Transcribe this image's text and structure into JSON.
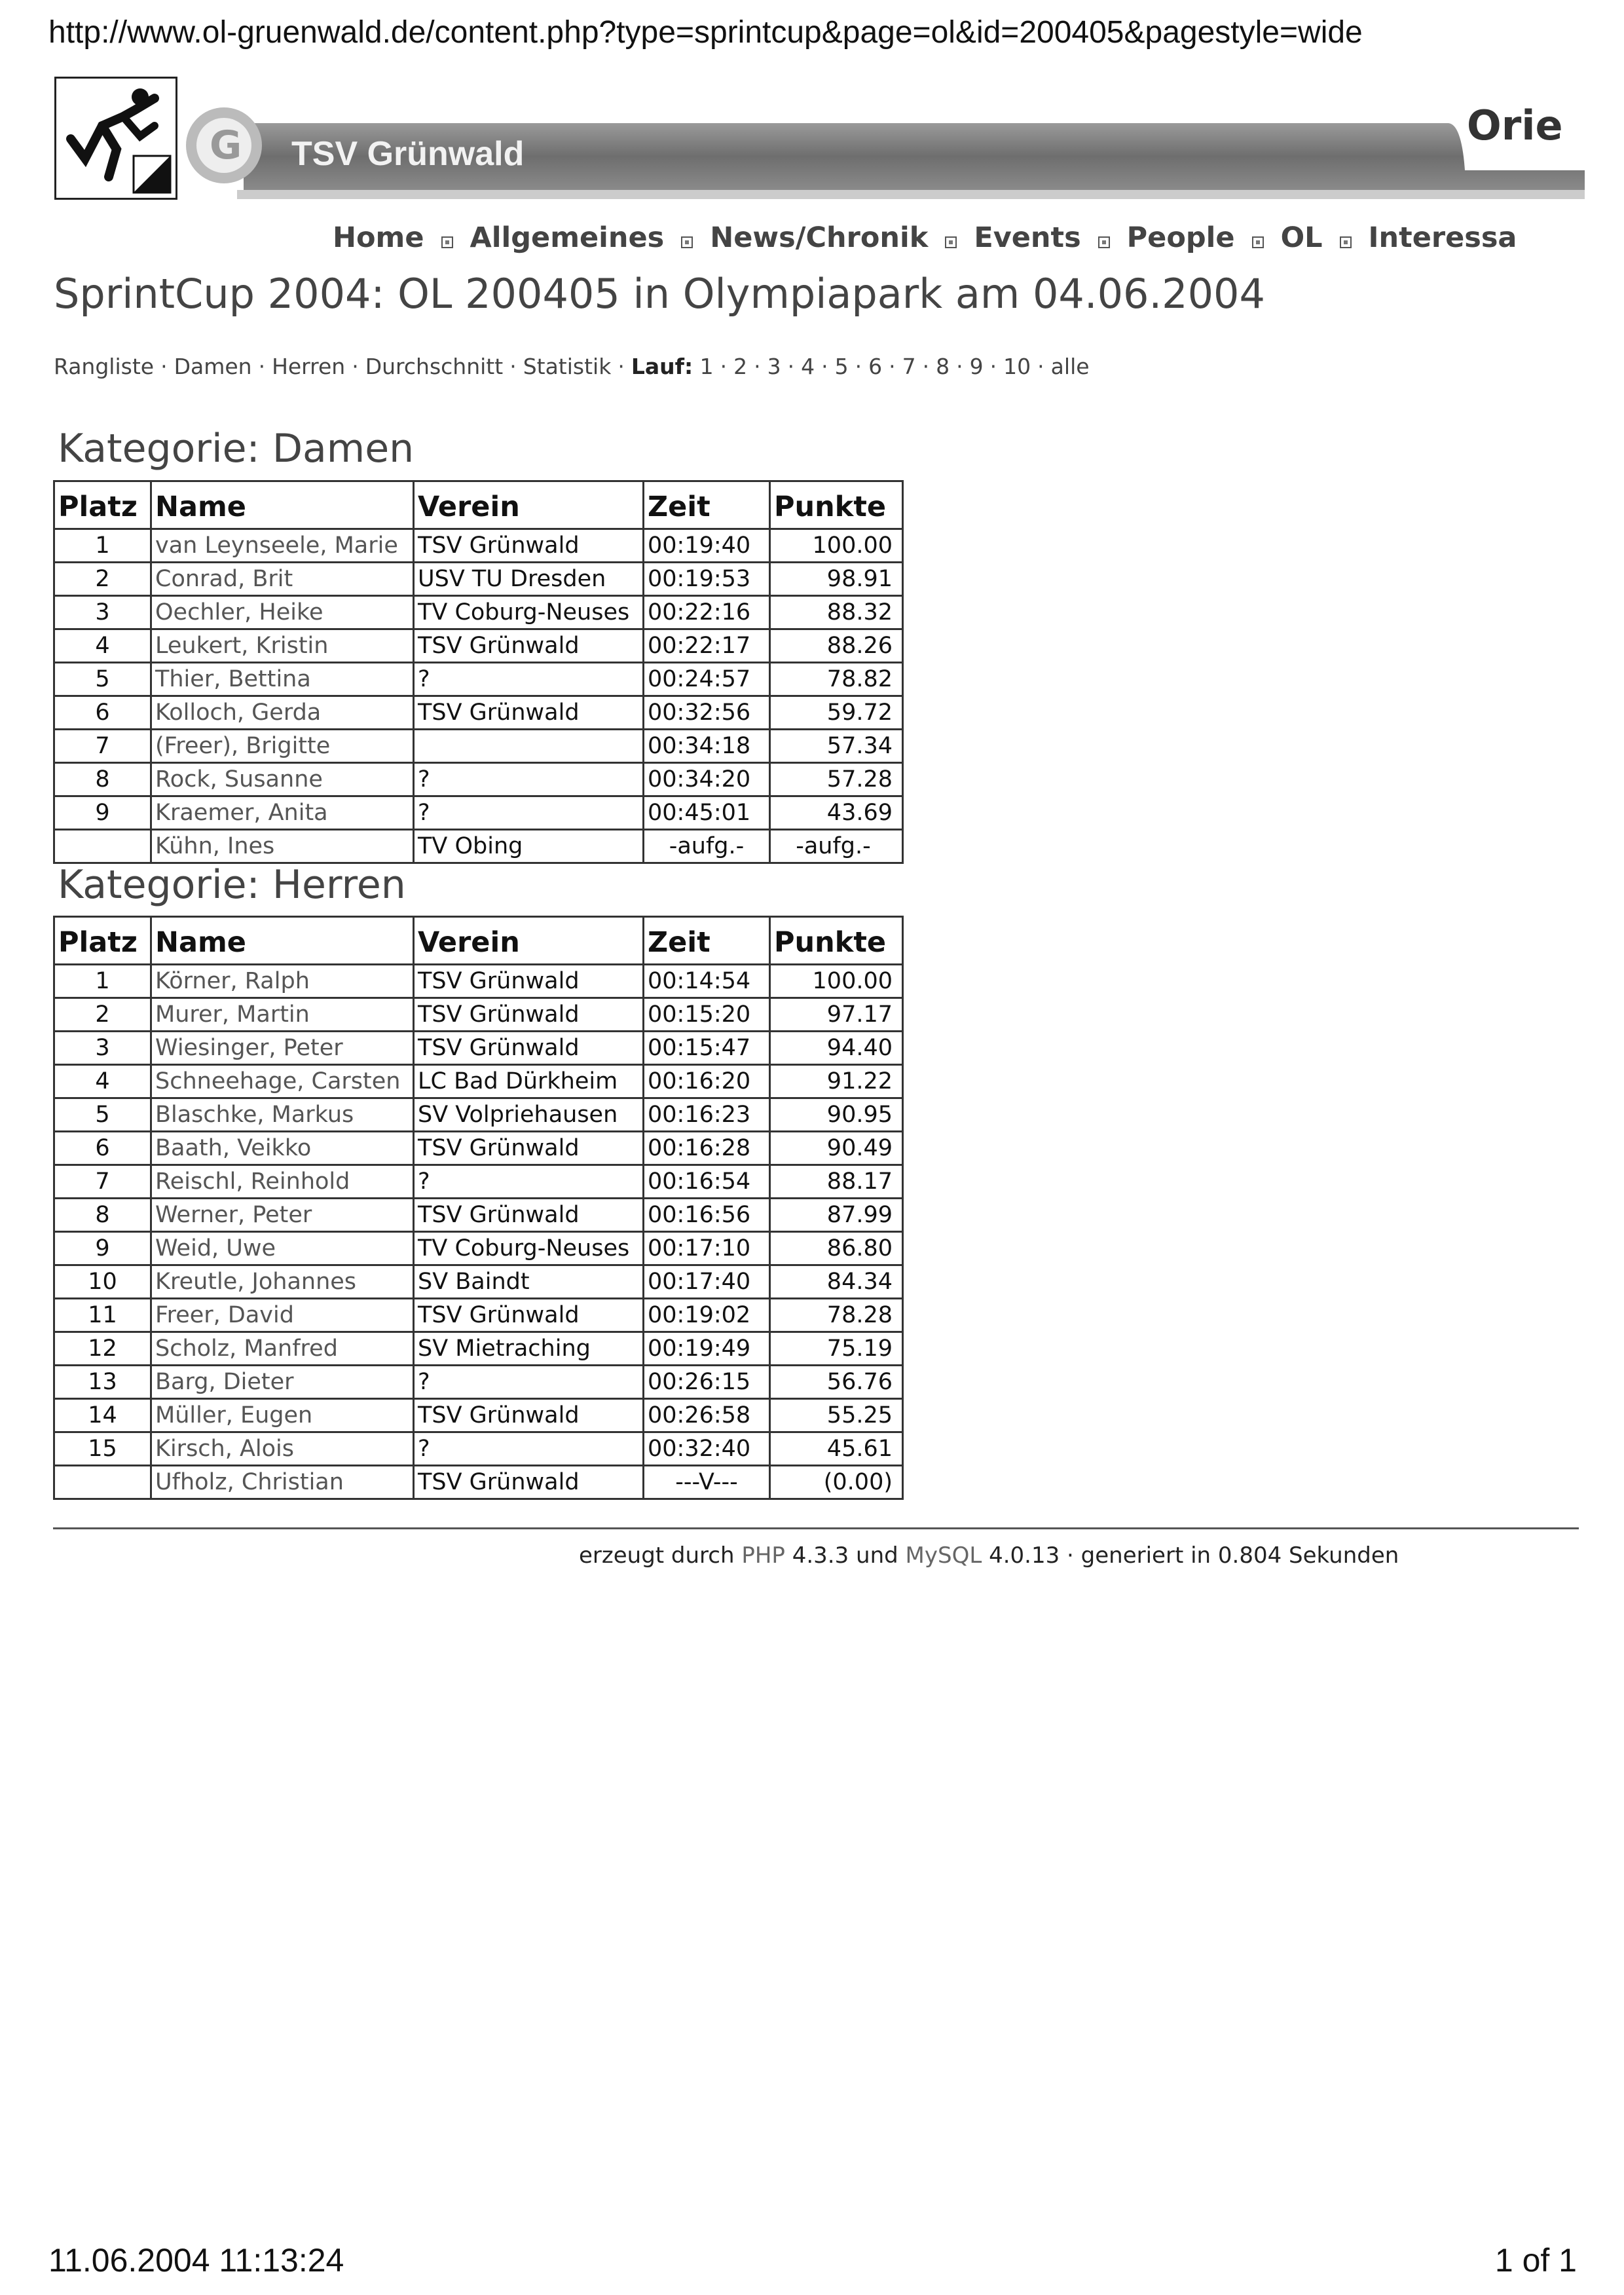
{
  "browser": {
    "url": "http://www.ol-gruenwald.de/content.php?type=sprintcup&page=ol&id=200405&pagestyle=wide"
  },
  "header": {
    "banner_text": "TSV Grünwald",
    "banner_right_text": "Orie",
    "logo_icon": "orienteering-runner-icon"
  },
  "nav": {
    "items": [
      "Home",
      "Allgemeines",
      "News/Chronik",
      "Events",
      "People",
      "OL",
      "Interessa"
    ]
  },
  "page": {
    "title": "SprintCup 2004: OL 200405 in Olympiapark am 04.06.2004"
  },
  "subnav": {
    "links": [
      "Rangliste",
      "Damen",
      "Herren",
      "Durchschnitt",
      "Statistik"
    ],
    "lauf_label": "Lauf:",
    "lauf_links": [
      "1",
      "2",
      "3",
      "4",
      "5",
      "6",
      "7",
      "8",
      "9",
      "10",
      "alle"
    ]
  },
  "columns": [
    "Platz",
    "Name",
    "Verein",
    "Zeit",
    "Punkte"
  ],
  "damen": {
    "heading": "Kategorie: Damen",
    "rows": [
      [
        "1",
        "van Leynseele, Marie",
        "TSV Grünwald",
        "00:19:40",
        "100.00"
      ],
      [
        "2",
        "Conrad, Brit",
        "USV TU Dresden",
        "00:19:53",
        "98.91"
      ],
      [
        "3",
        "Oechler, Heike",
        "TV Coburg-Neuses",
        "00:22:16",
        "88.32"
      ],
      [
        "4",
        "Leukert, Kristin",
        "TSV Grünwald",
        "00:22:17",
        "88.26"
      ],
      [
        "5",
        "Thier, Bettina",
        "?",
        "00:24:57",
        "78.82"
      ],
      [
        "6",
        "Kolloch, Gerda",
        "TSV Grünwald",
        "00:32:56",
        "59.72"
      ],
      [
        "7",
        "(Freer), Brigitte",
        "",
        "00:34:18",
        "57.34"
      ],
      [
        "8",
        "Rock, Susanne",
        "?",
        "00:34:20",
        "57.28"
      ],
      [
        "9",
        "Kraemer, Anita",
        "?",
        "00:45:01",
        "43.69"
      ],
      [
        "",
        "Kühn, Ines",
        "TV Obing",
        "-aufg.-",
        "-aufg.-"
      ]
    ]
  },
  "herren": {
    "heading": "Kategorie: Herren",
    "rows": [
      [
        "1",
        "Körner, Ralph",
        "TSV Grünwald",
        "00:14:54",
        "100.00"
      ],
      [
        "2",
        "Murer, Martin",
        "TSV Grünwald",
        "00:15:20",
        "97.17"
      ],
      [
        "3",
        "Wiesinger, Peter",
        "TSV Grünwald",
        "00:15:47",
        "94.40"
      ],
      [
        "4",
        "Schneehage, Carsten",
        "LC Bad Dürkheim",
        "00:16:20",
        "91.22"
      ],
      [
        "5",
        "Blaschke, Markus",
        "SV Volpriehausen",
        "00:16:23",
        "90.95"
      ],
      [
        "6",
        "Baath, Veikko",
        "TSV Grünwald",
        "00:16:28",
        "90.49"
      ],
      [
        "7",
        "Reischl, Reinhold",
        "?",
        "00:16:54",
        "88.17"
      ],
      [
        "8",
        "Werner, Peter",
        "TSV Grünwald",
        "00:16:56",
        "87.99"
      ],
      [
        "9",
        "Weid, Uwe",
        "TV Coburg-Neuses",
        "00:17:10",
        "86.80"
      ],
      [
        "10",
        "Kreutle, Johannes",
        "SV Baindt",
        "00:17:40",
        "84.34"
      ],
      [
        "11",
        "Freer, David",
        "TSV Grünwald",
        "00:19:02",
        "78.28"
      ],
      [
        "12",
        "Scholz, Manfred",
        "SV Mietraching",
        "00:19:49",
        "75.19"
      ],
      [
        "13",
        "Barg, Dieter",
        "?",
        "00:26:15",
        "56.76"
      ],
      [
        "14",
        "Müller, Eugen",
        "TSV Grünwald",
        "00:26:58",
        "55.25"
      ],
      [
        "15",
        "Kirsch, Alois",
        "?",
        "00:32:40",
        "45.61"
      ],
      [
        "",
        "Ufholz, Christian",
        "TSV Grünwald",
        "---V---",
        "(0.00)"
      ]
    ]
  },
  "footer": {
    "prefix": "erzeugt durch ",
    "php": "PHP",
    "php_version": " 4.3.3 und ",
    "mysql": "MySQL",
    "suffix": " 4.0.13 · generiert in 0.804 Sekunden"
  },
  "print": {
    "date": "11.06.2004 11:13:24",
    "page": "1 of 1"
  }
}
